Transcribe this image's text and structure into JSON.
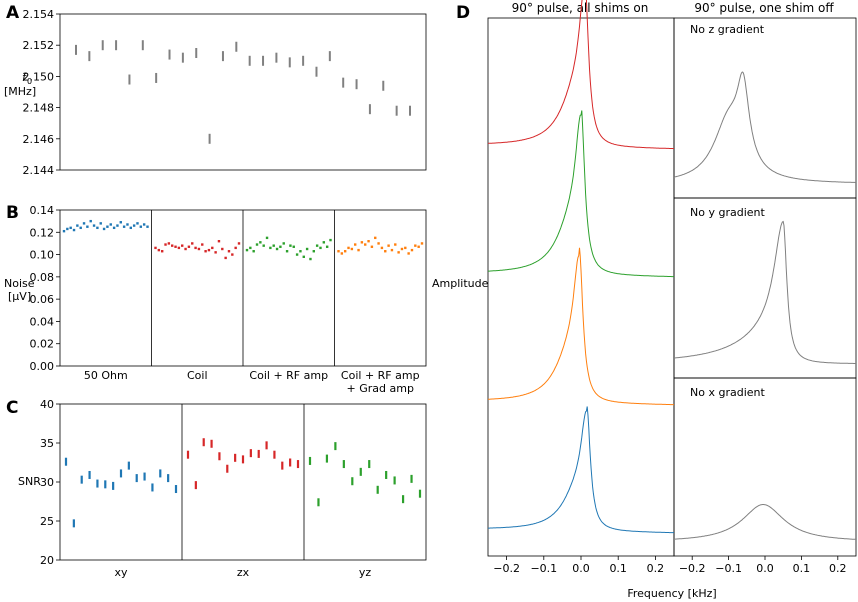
{
  "panel_labels": {
    "a": "A",
    "b": "B",
    "c": "C",
    "d": "D"
  },
  "chart_data": [
    {
      "id": "A",
      "type": "scatter",
      "marker": "vertical-bar",
      "color": "#808080",
      "ylabel_var": "f",
      "ylabel_sub": "0",
      "ylabel_unit": "[MHz]",
      "ylim": [
        2.144,
        2.154
      ],
      "yticks": [
        2.144,
        2.146,
        2.148,
        2.15,
        2.152,
        2.154
      ],
      "ytick_labels": [
        "2.144",
        "2.146",
        "2.148",
        "2.150",
        "2.152",
        "2.154"
      ],
      "x": [
        1,
        2,
        3,
        4,
        5,
        6,
        7,
        8,
        9,
        10,
        11,
        12,
        13,
        14,
        15,
        16,
        17,
        18,
        19,
        20,
        21,
        22,
        23,
        24,
        25,
        26
      ],
      "values": [
        2.1517,
        2.1513,
        2.152,
        2.152,
        2.1498,
        2.152,
        2.1499,
        2.1514,
        2.1512,
        2.1515,
        2.146,
        2.1513,
        2.1519,
        2.151,
        2.151,
        2.1512,
        2.1509,
        2.151,
        2.1503,
        2.1513,
        2.1496,
        2.1495,
        2.1479,
        2.1494,
        2.1478,
        2.1478
      ]
    },
    {
      "id": "B",
      "type": "scatter",
      "ylabel": "Noise",
      "ylabel_unit": "[μV]",
      "ylim": [
        0.0,
        0.14
      ],
      "yticks": [
        0,
        0.02,
        0.04,
        0.06,
        0.08,
        0.1,
        0.12,
        0.14
      ],
      "ytick_labels": [
        "0.00",
        "0.02",
        "0.04",
        "0.06",
        "0.08",
        "0.10",
        "0.12",
        "0.14"
      ],
      "categories": [
        "50 Ohm",
        "Coil",
        "Coil + RF amp",
        "Coil + RF amp"
      ],
      "category_line2": [
        "",
        "",
        "",
        "+ Grad amp"
      ],
      "series": [
        {
          "name": "50 Ohm",
          "color": "#1f77b4",
          "values": [
            0.121,
            0.123,
            0.124,
            0.122,
            0.126,
            0.124,
            0.128,
            0.125,
            0.13,
            0.126,
            0.124,
            0.128,
            0.123,
            0.125,
            0.127,
            0.124,
            0.126,
            0.129,
            0.125,
            0.127,
            0.124,
            0.126,
            0.128,
            0.125,
            0.127,
            0.125
          ]
        },
        {
          "name": "Coil",
          "color": "#d62728",
          "values": [
            0.106,
            0.104,
            0.103,
            0.109,
            0.11,
            0.108,
            0.107,
            0.106,
            0.108,
            0.105,
            0.107,
            0.11,
            0.106,
            0.105,
            0.109,
            0.103,
            0.104,
            0.106,
            0.102,
            0.112,
            0.105,
            0.097,
            0.103,
            0.1,
            0.106,
            0.11
          ]
        },
        {
          "name": "Coil + RF amp",
          "color": "#2ca02c",
          "values": [
            0.104,
            0.106,
            0.103,
            0.109,
            0.111,
            0.108,
            0.115,
            0.106,
            0.108,
            0.105,
            0.107,
            0.11,
            0.103,
            0.108,
            0.107,
            0.1,
            0.103,
            0.098,
            0.105,
            0.096,
            0.103,
            0.108,
            0.106,
            0.111,
            0.107,
            0.113
          ]
        },
        {
          "name": "Coil + RF amp + Grad amp",
          "color": "#ff7f0e",
          "values": [
            0.103,
            0.101,
            0.103,
            0.106,
            0.105,
            0.109,
            0.104,
            0.111,
            0.109,
            0.112,
            0.107,
            0.115,
            0.11,
            0.106,
            0.103,
            0.108,
            0.104,
            0.109,
            0.102,
            0.105,
            0.106,
            0.101,
            0.104,
            0.108,
            0.107,
            0.11
          ]
        }
      ]
    },
    {
      "id": "C",
      "type": "scatter",
      "marker": "vertical-bar",
      "ylabel": "SNR",
      "ylim": [
        20,
        40
      ],
      "yticks": [
        20,
        25,
        30,
        35,
        40
      ],
      "ytick_labels": [
        "20",
        "25",
        "30",
        "35",
        "40"
      ],
      "categories": [
        "xy",
        "zx",
        "yz"
      ],
      "series": [
        {
          "name": "xy",
          "color": "#1f77b4",
          "values": [
            32.6,
            24.7,
            30.3,
            30.9,
            29.8,
            29.7,
            29.5,
            31.1,
            32.1,
            30.5,
            30.7,
            29.3,
            31.1,
            30.5,
            29.1
          ]
        },
        {
          "name": "zx",
          "color": "#d62728",
          "values": [
            33.5,
            29.6,
            35.1,
            34.9,
            33.3,
            31.7,
            33.1,
            32.9,
            33.7,
            33.6,
            34.7,
            33.5,
            32.1,
            32.5,
            32.3
          ]
        },
        {
          "name": "yz",
          "color": "#2ca02c",
          "values": [
            32.7,
            27.4,
            33.0,
            34.6,
            32.3,
            30.1,
            31.3,
            32.3,
            29.0,
            30.9,
            30.2,
            27.8,
            30.4,
            28.5
          ]
        }
      ]
    },
    {
      "id": "D-left",
      "type": "line",
      "title": "90° pulse, all shims on",
      "ylabel": "Amplitude",
      "xlabel": "Frequency [kHz]",
      "xlim": [
        -0.25,
        0.25
      ],
      "xticks": [
        -0.2,
        -0.1,
        0.0,
        0.1,
        0.2
      ],
      "xtick_labels": [
        "−0.2",
        "−0.1",
        "0.0",
        "0.1",
        "0.2"
      ],
      "series": [
        {
          "name": "red",
          "color": "#d62728",
          "center": 0.01,
          "offset": 3.0,
          "height": 1.0,
          "baseline_left": 0.0,
          "baseline_right": 0.0
        },
        {
          "name": "green",
          "color": "#2ca02c",
          "center": 0.0,
          "offset": 2.0,
          "height": 1.0,
          "baseline_left": 0.0,
          "baseline_right": 0.0
        },
        {
          "name": "orange",
          "color": "#ff7f0e",
          "center": -0.005,
          "offset": 1.0,
          "height": 0.92,
          "baseline_left": 0.0,
          "baseline_right": 0.0
        },
        {
          "name": "blue",
          "color": "#1f77b4",
          "center": 0.015,
          "offset": 0.0,
          "height": 0.75,
          "baseline_left": 0.0,
          "baseline_right": 0.0
        }
      ]
    },
    {
      "id": "D-right",
      "type": "line",
      "title": "90° pulse, one shim off",
      "xlim": [
        -0.25,
        0.25
      ],
      "xticks": [
        -0.2,
        -0.1,
        0.0,
        0.1,
        0.2
      ],
      "xtick_labels": [
        "−0.2",
        "−0.1",
        "0.0",
        "0.1",
        "0.2"
      ],
      "color": "#808080",
      "subplots": [
        {
          "label": "No z gradient",
          "peak_x": -0.06,
          "peak_height": 0.9
        },
        {
          "label": "No y gradient",
          "peak_x": 0.05,
          "peak_height": 0.95
        },
        {
          "label": "No x gradient",
          "peak_x": -0.005,
          "peak_height": 0.25
        }
      ]
    }
  ]
}
